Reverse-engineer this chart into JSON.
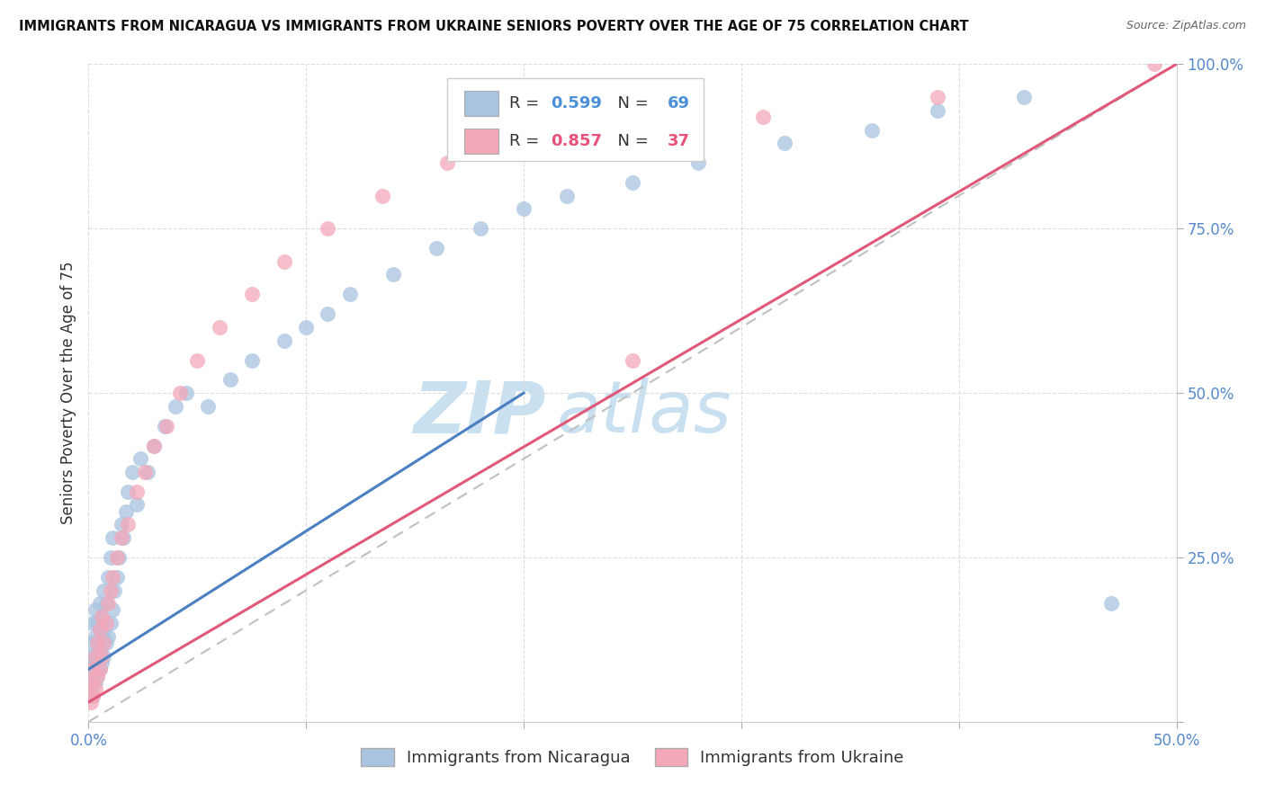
{
  "title": "IMMIGRANTS FROM NICARAGUA VS IMMIGRANTS FROM UKRAINE SENIORS POVERTY OVER THE AGE OF 75 CORRELATION CHART",
  "source": "Source: ZipAtlas.com",
  "ylabel": "Seniors Poverty Over the Age of 75",
  "xlim": [
    0,
    0.5
  ],
  "ylim": [
    0,
    1.0
  ],
  "xticks": [
    0.0,
    0.1,
    0.2,
    0.3,
    0.4,
    0.5
  ],
  "yticks": [
    0.0,
    0.25,
    0.5,
    0.75,
    1.0
  ],
  "nicaragua_R": 0.599,
  "nicaragua_N": 69,
  "ukraine_R": 0.857,
  "ukraine_N": 37,
  "nicaragua_color": "#a8c4e0",
  "ukraine_color": "#f4a7b9",
  "nicaragua_line_color": "#4a7fc1",
  "ukraine_line_color": "#e05878",
  "ref_line_color": "#c0c0c0",
  "watermark_zip": "ZIP",
  "watermark_atlas": "atlas",
  "watermark_color_zip": "#c8e0f0",
  "watermark_color_atlas": "#c8e0f0",
  "background_color": "#ffffff",
  "nicaragua_x": [
    0.001,
    0.001,
    0.001,
    0.002,
    0.002,
    0.002,
    0.002,
    0.002,
    0.003,
    0.003,
    0.003,
    0.003,
    0.003,
    0.004,
    0.004,
    0.004,
    0.004,
    0.005,
    0.005,
    0.005,
    0.005,
    0.006,
    0.006,
    0.006,
    0.007,
    0.007,
    0.007,
    0.008,
    0.008,
    0.009,
    0.009,
    0.01,
    0.01,
    0.011,
    0.011,
    0.012,
    0.013,
    0.014,
    0.015,
    0.016,
    0.017,
    0.018,
    0.02,
    0.022,
    0.024,
    0.027,
    0.03,
    0.035,
    0.04,
    0.045,
    0.055,
    0.065,
    0.075,
    0.09,
    0.1,
    0.11,
    0.12,
    0.14,
    0.16,
    0.18,
    0.2,
    0.22,
    0.25,
    0.28,
    0.32,
    0.36,
    0.39,
    0.43,
    0.47
  ],
  "nicaragua_y": [
    0.05,
    0.08,
    0.1,
    0.04,
    0.07,
    0.09,
    0.12,
    0.15,
    0.06,
    0.08,
    0.1,
    0.13,
    0.17,
    0.07,
    0.09,
    0.12,
    0.15,
    0.08,
    0.11,
    0.14,
    0.18,
    0.09,
    0.13,
    0.16,
    0.1,
    0.14,
    0.2,
    0.12,
    0.18,
    0.13,
    0.22,
    0.15,
    0.25,
    0.17,
    0.28,
    0.2,
    0.22,
    0.25,
    0.3,
    0.28,
    0.32,
    0.35,
    0.38,
    0.33,
    0.4,
    0.38,
    0.42,
    0.45,
    0.48,
    0.5,
    0.48,
    0.52,
    0.55,
    0.58,
    0.6,
    0.62,
    0.65,
    0.68,
    0.72,
    0.75,
    0.78,
    0.8,
    0.82,
    0.85,
    0.88,
    0.9,
    0.93,
    0.95,
    0.18
  ],
  "ukraine_x": [
    0.001,
    0.001,
    0.002,
    0.002,
    0.003,
    0.003,
    0.004,
    0.004,
    0.005,
    0.005,
    0.006,
    0.006,
    0.007,
    0.008,
    0.009,
    0.01,
    0.011,
    0.013,
    0.015,
    0.018,
    0.022,
    0.026,
    0.03,
    0.036,
    0.042,
    0.05,
    0.06,
    0.075,
    0.09,
    0.11,
    0.135,
    0.165,
    0.2,
    0.25,
    0.31,
    0.39,
    0.49
  ],
  "ukraine_y": [
    0.03,
    0.06,
    0.04,
    0.08,
    0.05,
    0.1,
    0.07,
    0.12,
    0.08,
    0.14,
    0.1,
    0.16,
    0.12,
    0.15,
    0.18,
    0.2,
    0.22,
    0.25,
    0.28,
    0.3,
    0.35,
    0.38,
    0.42,
    0.45,
    0.5,
    0.55,
    0.6,
    0.65,
    0.7,
    0.75,
    0.8,
    0.85,
    0.9,
    0.55,
    0.92,
    0.95,
    1.0
  ],
  "nic_trend_x": [
    0.0,
    0.2
  ],
  "nic_trend_y": [
    0.08,
    0.5
  ],
  "ukr_trend_x": [
    0.0,
    0.5
  ],
  "ukr_trend_y": [
    0.03,
    1.0
  ]
}
